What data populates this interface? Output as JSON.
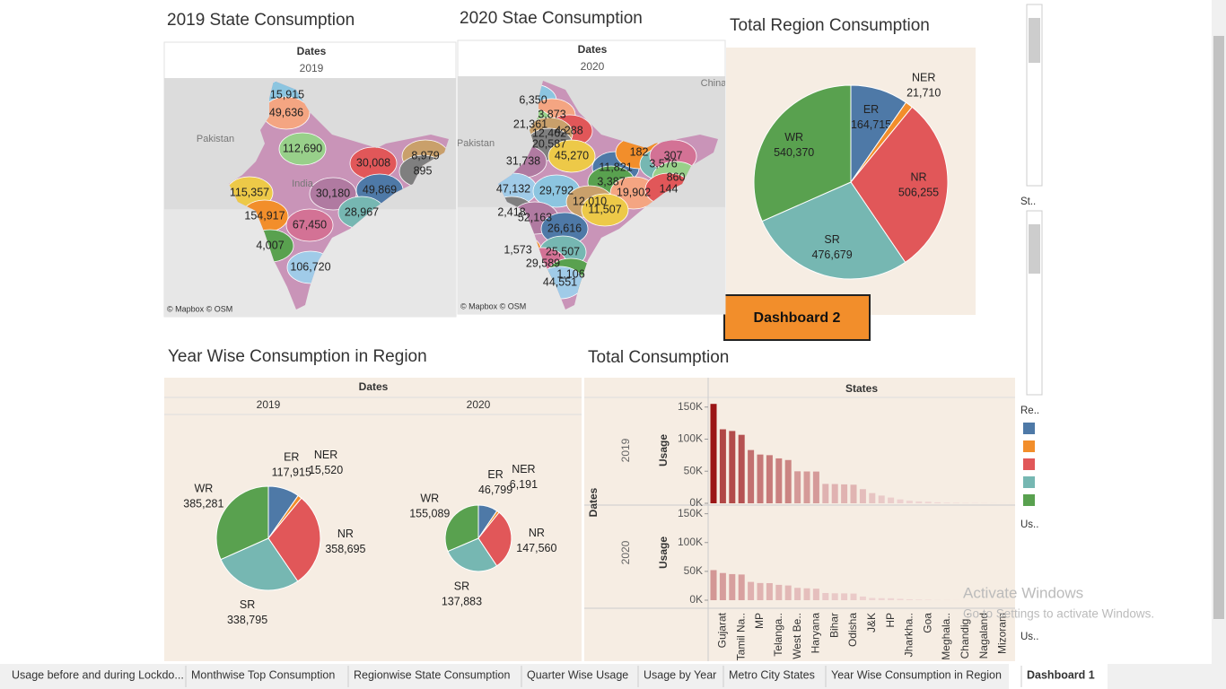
{
  "maps": [
    {
      "title": "2019 State Consumption",
      "header": "Dates",
      "year": "2019",
      "places": [
        "Pakistan",
        "India"
      ],
      "labels": [
        "15,915",
        "49,636",
        "112,690",
        "30,008",
        "8,979",
        "895",
        "115,357",
        "30,180",
        "49,869",
        "154,917",
        "28,967",
        "67,450",
        "4,007",
        "106,720"
      ],
      "attribution": "© Mapbox © OSM"
    },
    {
      "title": "2020 Stae Consumption",
      "header": "Dates",
      "year": "2020",
      "places": [
        "Pakistan",
        "China"
      ],
      "labels": [
        "6,350",
        "3,873",
        "21,361",
        "4,288",
        "12,462",
        "20,587",
        "45,270",
        "31,738",
        "11,821",
        "182",
        "3,576",
        "307",
        "3,387",
        "47,132",
        "29,792",
        "19,902",
        "860",
        "144",
        "12,010",
        "2,418",
        "11,507",
        "52,163",
        "26,616",
        "1,573",
        "25,507",
        "29,589",
        "1,106",
        "44,551"
      ],
      "attribution": "© Mapbox © OSM"
    }
  ],
  "chart_data": [
    {
      "type": "pie",
      "title": "Total Region Consumption",
      "categories": [
        "ER",
        "NER",
        "NR",
        "SR",
        "WR"
      ],
      "values": [
        164715,
        21710,
        506255,
        476679,
        540370
      ],
      "value_labels": [
        "164,715",
        "21,710",
        "506,255",
        "476,679",
        "540,370"
      ],
      "colors": [
        "#4e79a7",
        "#f28e2b",
        "#e15759",
        "#76b7b2",
        "#59a14f"
      ]
    },
    {
      "type": "pie",
      "title": "Year Wise Consumption in Region",
      "header": "Dates",
      "categories": [
        "ER",
        "NER",
        "NR",
        "SR",
        "WR"
      ],
      "colors": [
        "#4e79a7",
        "#f28e2b",
        "#e15759",
        "#76b7b2",
        "#59a14f"
      ],
      "series": [
        {
          "name": "2019",
          "values": [
            117915,
            15520,
            358695,
            338795,
            385281
          ],
          "value_labels": [
            "117,915",
            "15,520",
            "358,695",
            "338,795",
            "385,281"
          ]
        },
        {
          "name": "2020",
          "values": [
            46799,
            6191,
            147560,
            137883,
            155089
          ],
          "value_labels": [
            "46,799",
            "6,191",
            "147,560",
            "137,883",
            "155,089"
          ]
        }
      ]
    },
    {
      "type": "bar",
      "title": "Total Consumption",
      "column_header": "States",
      "row_header": "Dates",
      "y_label": "Usage",
      "categories": [
        null,
        "Gujarat",
        null,
        "Tamil Na..",
        null,
        "MP",
        null,
        "Telanga..",
        null,
        "West Be..",
        null,
        "Haryana",
        null,
        "Bihar",
        null,
        "Odisha",
        null,
        "J&K",
        null,
        "HP",
        null,
        "Jharkha..",
        null,
        "Goa",
        null,
        "Meghala..",
        null,
        "Chandig..",
        null,
        "Nagaland",
        null,
        "Mizoram",
        null
      ],
      "series": [
        {
          "name": "2019",
          "values": [
            154917,
            115357,
            112690,
            106720,
            83000,
            76000,
            75000,
            70000,
            67450,
            49869,
            49636,
            49500,
            30180,
            30008,
            29500,
            28967,
            22000,
            15915,
            12000,
            8979,
            6000,
            4007,
            3000,
            2500,
            1500,
            895,
            700,
            500,
            400,
            300,
            200,
            150,
            100
          ]
        },
        {
          "name": "2020",
          "values": [
            52163,
            47132,
            45270,
            44551,
            31738,
            29792,
            29589,
            26616,
            25507,
            21361,
            20587,
            19902,
            12462,
            12010,
            11821,
            11507,
            6350,
            3873,
            3576,
            3387,
            2418,
            1573,
            1106,
            860,
            307,
            288,
            182,
            144,
            120,
            100,
            80,
            60,
            40
          ]
        }
      ],
      "ylim": [
        0,
        165000
      ],
      "yticks": [
        {
          "value": 0,
          "label": "0K"
        },
        {
          "value": 50000,
          "label": "50K"
        },
        {
          "value": 100000,
          "label": "100K"
        },
        {
          "value": 150000,
          "label": "150K"
        }
      ],
      "color_range": [
        "#f0d8d6",
        "#9b1616"
      ]
    }
  ],
  "button": "Dashboard 2",
  "sidebar": [
    "St..",
    "Re..",
    "Us..",
    "Us.."
  ],
  "tabs": [
    {
      "label": "Usage before and during Lockdo..."
    },
    {
      "label": "Monthwise Top Consumption"
    },
    {
      "label": "Regionwise State Consumption"
    },
    {
      "label": "Quarter Wise Usage"
    },
    {
      "label": "Usage by Year"
    },
    {
      "label": "Metro City States"
    },
    {
      "label": "Year Wise Consumption in Region"
    },
    {
      "label": "Dashboard 1",
      "active": true
    }
  ],
  "watermark": {
    "title": "Activate Windows",
    "text": "Go to Settings to activate Windows."
  }
}
